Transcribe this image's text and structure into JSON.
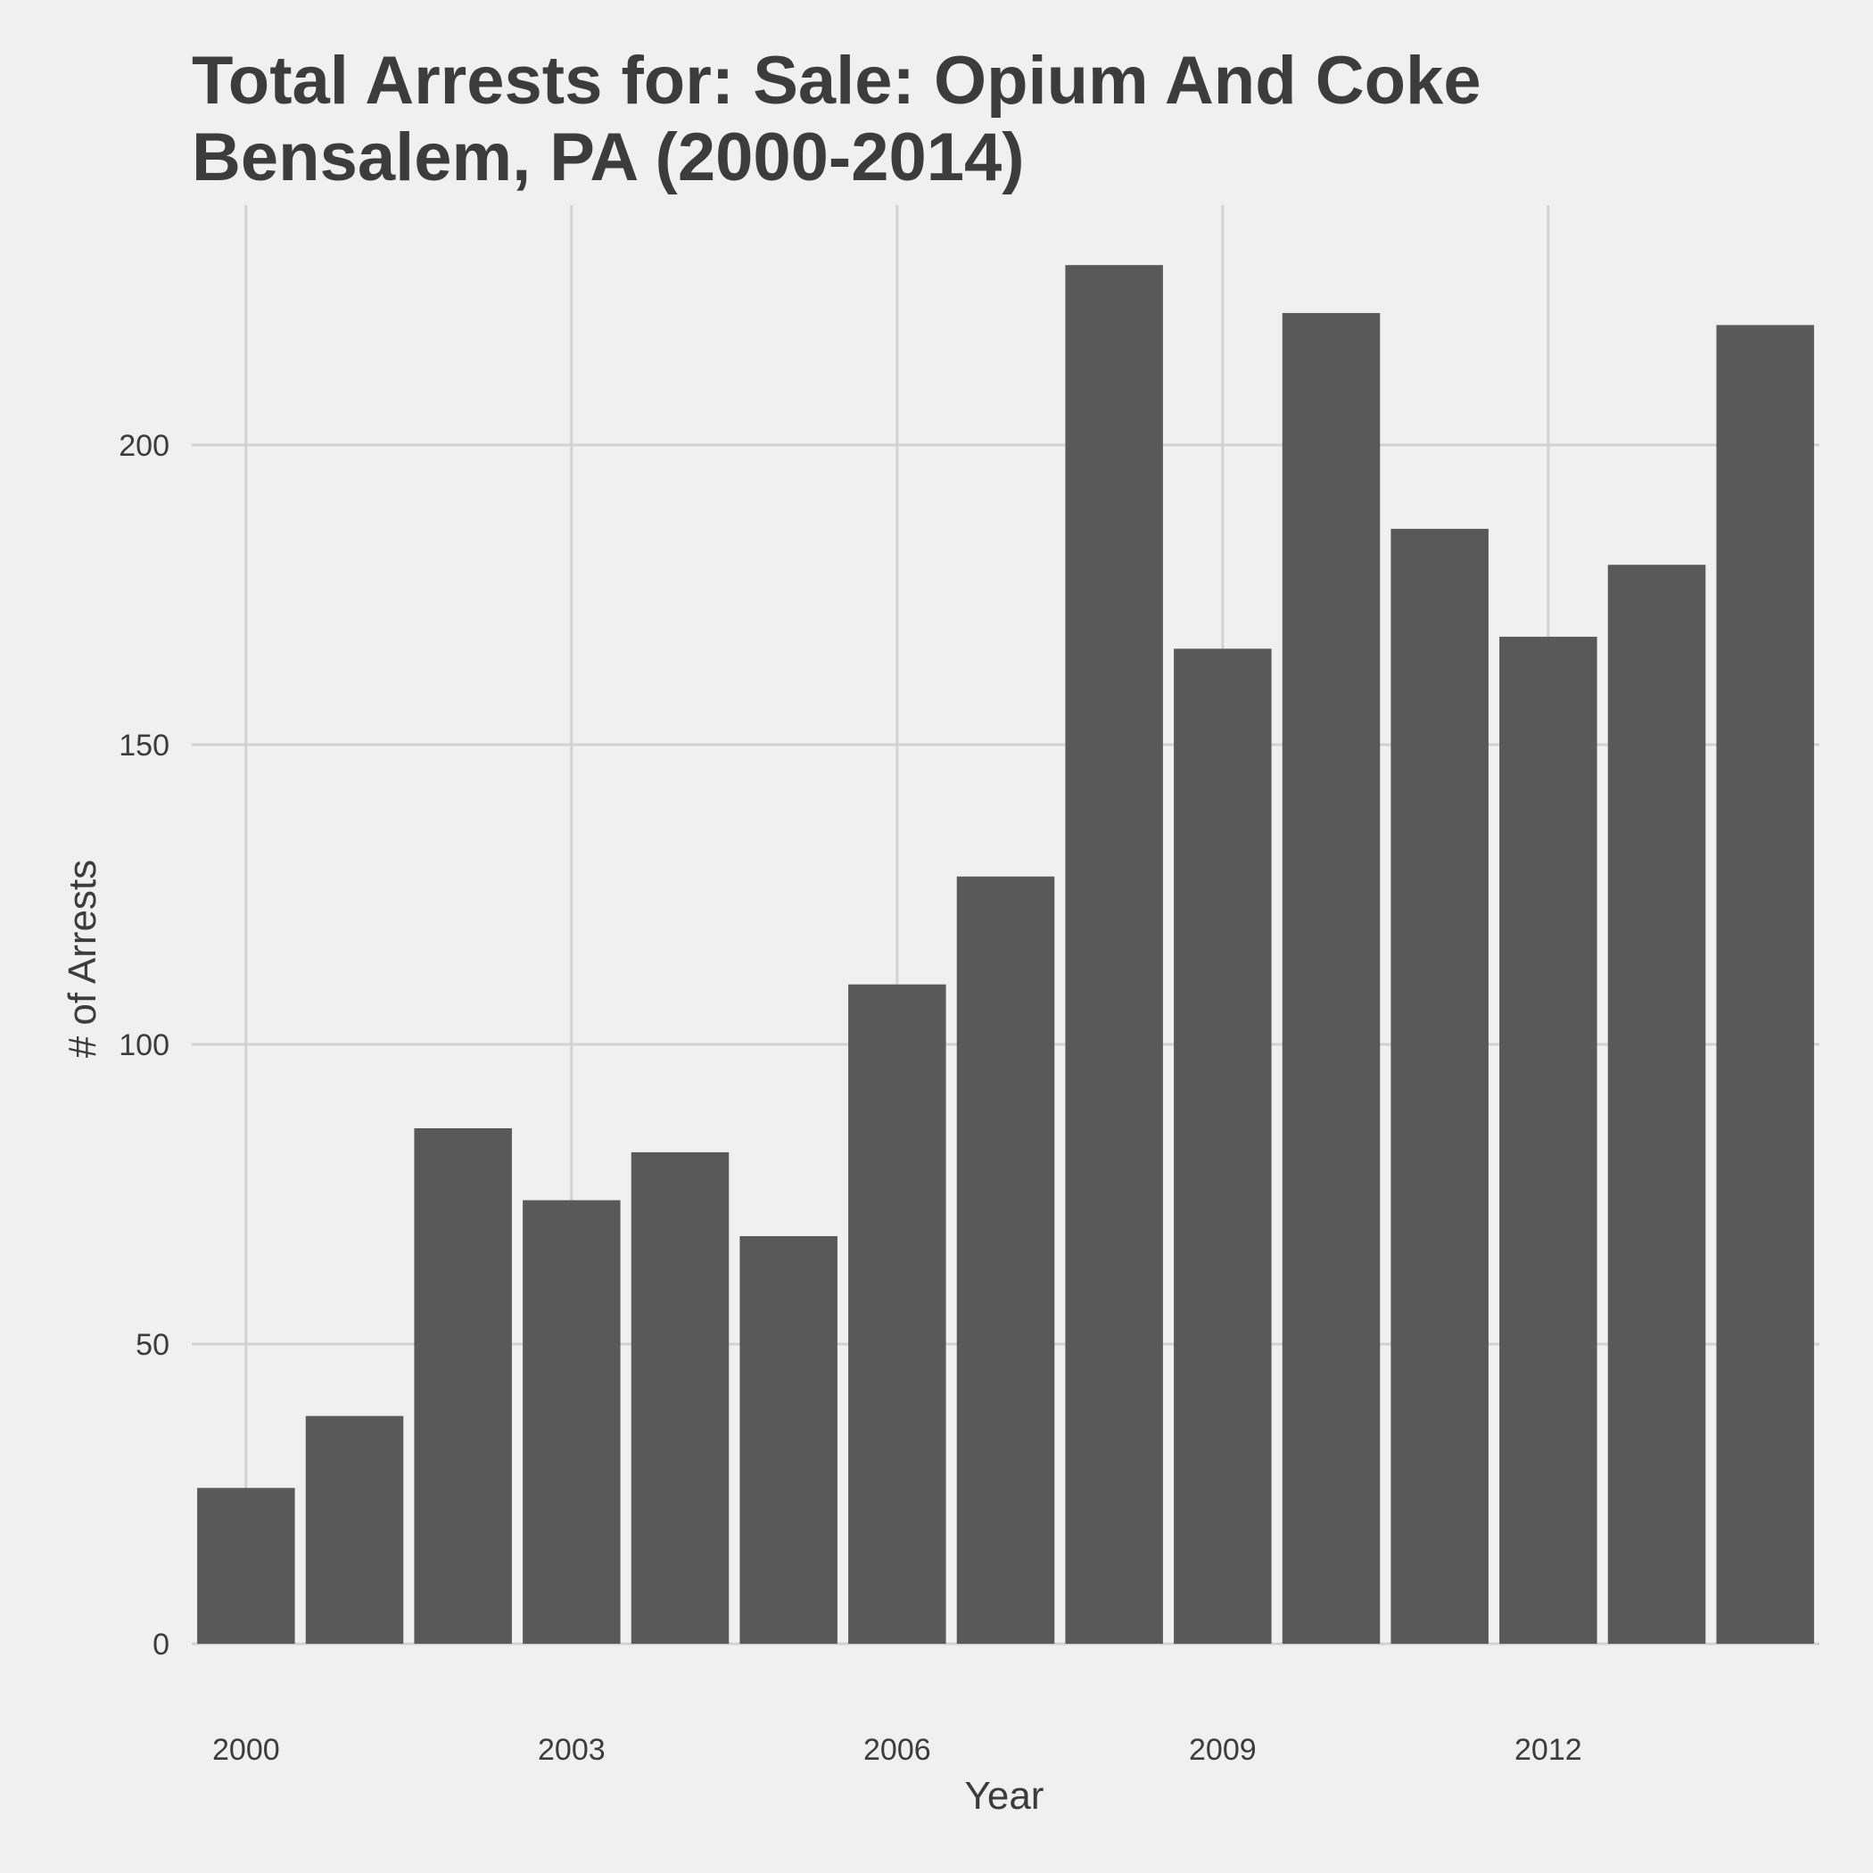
{
  "chart_data": {
    "type": "bar",
    "title_line1": "Total Arrests for: Sale: Opium And Coke",
    "title_line2": "Bensalem, PA (2000-2014)",
    "xlabel": "Year",
    "ylabel": "# of Arrests",
    "x": [
      2000,
      2001,
      2002,
      2003,
      2004,
      2005,
      2006,
      2007,
      2008,
      2009,
      2010,
      2011,
      2012,
      2013,
      2014
    ],
    "values": [
      26,
      38,
      86,
      74,
      82,
      68,
      110,
      128,
      230,
      166,
      222,
      186,
      168,
      180,
      220
    ],
    "x_ticks": [
      "2000",
      "2003",
      "2006",
      "2009",
      "2012"
    ],
    "y_ticks": [
      "0",
      "50",
      "100",
      "150",
      "200"
    ],
    "ylim": [
      0,
      240
    ],
    "grid": true,
    "colors": {
      "bar": "#595959",
      "background": "#f0f0f0",
      "grid": "#d2d2d2",
      "text": "#3c3c3c"
    }
  }
}
